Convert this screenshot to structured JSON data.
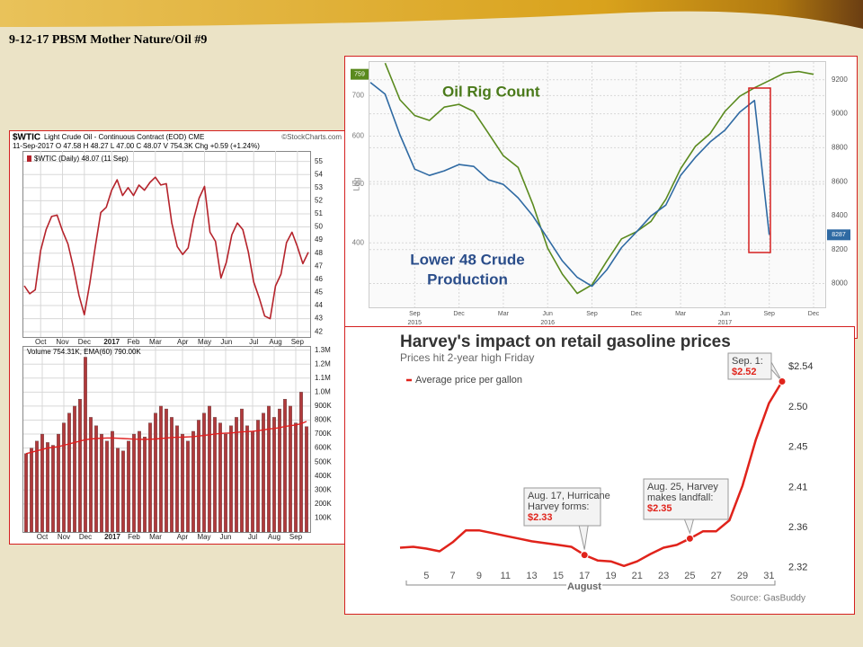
{
  "slide_title": "9-12-17 PBSM Mother Nature/Oil  #9",
  "chart_data": [
    {
      "type": "line",
      "symbol": "$WTIC",
      "title": "Light Crude Oil - Continuous Contract (EOD) CME",
      "credit": "©StockCharts.com",
      "subtitle": "11-Sep-2017  O 47.58  H 48.27  L 47.00  C 48.07  V 754.3K  Chg +0.59 (+1.24%)",
      "categories": [
        null,
        null,
        null,
        "Oct",
        null,
        null,
        null,
        "Nov",
        null,
        null,
        null,
        "Dec",
        null,
        null,
        null,
        null,
        "2017",
        null,
        null,
        null,
        "Feb",
        null,
        null,
        null,
        "Mar",
        null,
        null,
        null,
        null,
        "Apr",
        null,
        null,
        null,
        "May",
        null,
        null,
        null,
        "Jun",
        null,
        null,
        null,
        null,
        "Jul",
        null,
        null,
        null,
        "Aug",
        null,
        null,
        null,
        "Sep",
        null,
        null
      ],
      "series": [
        {
          "name": "$WTIC (Daily) 48.07 (11 Sep)",
          "color": "#b5232b",
          "values": [
            45.5,
            44.9,
            45.2,
            48.2,
            49.8,
            50.8,
            50.9,
            49.7,
            48.7,
            46.9,
            44.8,
            43.3,
            45.7,
            48.5,
            51.1,
            51.5,
            52.8,
            53.6,
            52.4,
            53.0,
            52.4,
            53.2,
            52.8,
            53.4,
            53.8,
            53.2,
            53.3,
            50.3,
            48.5,
            47.9,
            48.4,
            50.6,
            52.2,
            53.1,
            49.6,
            48.9,
            46.1,
            47.3,
            49.4,
            50.3,
            49.8,
            48.1,
            45.8,
            44.6,
            43.2,
            43.0,
            45.5,
            46.4,
            48.8,
            49.6,
            48.5,
            47.2,
            48.07
          ]
        }
      ],
      "ylim": [
        41.6,
        55.8
      ],
      "yticks": [
        42,
        43,
        44,
        45,
        46,
        47,
        48,
        49,
        50,
        51,
        52,
        53,
        54,
        55
      ],
      "grid": true
    },
    {
      "type": "bar",
      "legend": "Volume 754.31K, EMA(60) 790.00K",
      "categories": [
        null,
        null,
        null,
        "Oct",
        null,
        null,
        null,
        "Nov",
        null,
        null,
        null,
        "Dec",
        null,
        null,
        null,
        null,
        "2017",
        null,
        null,
        null,
        "Feb",
        null,
        null,
        null,
        "Mar",
        null,
        null,
        null,
        null,
        "Apr",
        null,
        null,
        null,
        "May",
        null,
        null,
        null,
        "Jun",
        null,
        null,
        null,
        null,
        "Jul",
        null,
        null,
        null,
        "Aug",
        null,
        null,
        null,
        "Sep",
        null,
        null
      ],
      "series": [
        {
          "color": "#b0393b",
          "values": [
            560000,
            600000,
            650000,
            700000,
            640000,
            620000,
            700000,
            780000,
            850000,
            900000,
            950000,
            1250000,
            820000,
            760000,
            700000,
            650000,
            720000,
            600000,
            580000,
            650000,
            700000,
            720000,
            680000,
            780000,
            850000,
            900000,
            880000,
            820000,
            760000,
            700000,
            650000,
            720000,
            800000,
            850000,
            900000,
            820000,
            780000,
            700000,
            760000,
            820000,
            880000,
            760000,
            720000,
            800000,
            850000,
            900000,
            820000,
            880000,
            950000,
            900000,
            780000,
            1000000,
            754000
          ]
        },
        {
          "type": "line",
          "color": "#e02020",
          "values": [
            560000,
            570000,
            580000,
            590000,
            600000,
            605000,
            610000,
            620000,
            630000,
            640000,
            650000,
            660000,
            665000,
            668000,
            670000,
            672000,
            672000,
            670000,
            668000,
            666000,
            664000,
            663000,
            662000,
            663000,
            665000,
            668000,
            672000,
            675000,
            677000,
            678000,
            680000,
            682000,
            686000,
            690000,
            695000,
            700000,
            705000,
            706000,
            708000,
            712000,
            716000,
            718000,
            720000,
            724000,
            730000,
            736000,
            740000,
            746000,
            754000,
            760000,
            765000,
            775000,
            790000
          ]
        }
      ],
      "ylim": [
        0,
        1330000
      ],
      "yticks": [
        {
          "value": 100000,
          "label": "100K"
        },
        {
          "value": 200000,
          "label": "200K"
        },
        {
          "value": 300000,
          "label": "300K"
        },
        {
          "value": 400000,
          "label": "400K"
        },
        {
          "value": 500000,
          "label": "500K"
        },
        {
          "value": 600000,
          "label": "600K"
        },
        {
          "value": 700000,
          "label": "700K"
        },
        {
          "value": 800000,
          "label": "800K"
        },
        {
          "value": 900000,
          "label": "900K"
        },
        {
          "value": 1000000,
          "label": "1.0M"
        },
        {
          "value": 1100000,
          "label": "1.1M"
        },
        {
          "value": 1200000,
          "label": "1.2M"
        },
        {
          "value": 1300000,
          "label": "1.3M"
        }
      ],
      "grid": true
    },
    {
      "type": "line",
      "ylabel": "Log",
      "annotations": [
        "Oil Rig Count",
        "Lower 48 Crude",
        "Production"
      ],
      "categories": [
        null,
        null,
        null,
        "Sep",
        null,
        null,
        "Dec",
        null,
        null,
        "Mar",
        null,
        null,
        "Jun",
        null,
        null,
        "Sep",
        null,
        null,
        "Dec",
        null,
        null,
        "Mar",
        null,
        null,
        "Jun",
        null,
        null,
        "Sep",
        null,
        null,
        "Dec"
      ],
      "category_sublabels": [
        null,
        null,
        null,
        "2015",
        null,
        null,
        null,
        null,
        null,
        null,
        null,
        null,
        "2016",
        null,
        null,
        null,
        null,
        null,
        null,
        null,
        null,
        null,
        null,
        null,
        "2017",
        null,
        null,
        null,
        null,
        null,
        null
      ],
      "series": [
        {
          "color": "#5a8a1e",
          "last_value": 759,
          "values": [
            null,
            792,
            689,
            649,
            637,
            670,
            677,
            659,
            606,
            557,
            533,
            463,
            392,
            355,
            330,
            341,
            373,
            406,
            417,
            434,
            472,
            530,
            577,
            606,
            659,
            698,
            721,
            741,
            762,
            767,
            759
          ]
        },
        {
          "color": "#2f6aa3",
          "axis": "y2",
          "last_value": 8287,
          "values": [
            9184,
            9115,
            8876,
            8674,
            8637,
            8664,
            8701,
            8690,
            8611,
            8584,
            8505,
            8398,
            8266,
            8133,
            8037,
            7984,
            8080,
            8212,
            8303,
            8398,
            8462,
            8637,
            8743,
            8834,
            8903,
            9009,
            9078,
            8287,
            null,
            null,
            null
          ]
        }
      ],
      "ylim": [
        313,
        798
      ],
      "ylog": true,
      "yticks": [
        400,
        500,
        600,
        700
      ],
      "y2lim": [
        7860,
        9310
      ],
      "y2ticks": [
        8000,
        8200,
        8400,
        8600,
        8800,
        9000,
        9200
      ],
      "grid": true
    },
    {
      "type": "line",
      "title": "Harvey's impact on retail gasoline prices",
      "subtitle": "Prices hit 2-year high Friday",
      "xlabel": "August",
      "source": "Source: GasBuddy",
      "categories": [
        null,
        null,
        "5",
        null,
        "7",
        null,
        "9",
        null,
        "11",
        null,
        "13",
        null,
        "15",
        null,
        "17",
        null,
        "19",
        null,
        "21",
        null,
        "23",
        null,
        "25",
        null,
        "27",
        null,
        "29",
        null,
        "31",
        null
      ],
      "series": [
        {
          "name": "Average price per gallon",
          "color": "#e0231b",
          "values": [
            2.342,
            2.343,
            2.341,
            2.338,
            2.348,
            2.361,
            2.361,
            2.358,
            2.355,
            2.352,
            2.349,
            2.347,
            2.345,
            2.343,
            2.334,
            2.328,
            2.327,
            2.322,
            2.327,
            2.335,
            2.342,
            2.345,
            2.352,
            2.36,
            2.36,
            2.372,
            2.41,
            2.46,
            2.5,
            2.524
          ],
          "value_labels": [
            null,
            null,
            null,
            null,
            null,
            null,
            null,
            null,
            null,
            null,
            null,
            null,
            null,
            null,
            "$2.33",
            null,
            null,
            null,
            null,
            null,
            null,
            null,
            "$2.35",
            null,
            null,
            null,
            null,
            null,
            null,
            "$2.52"
          ]
        }
      ],
      "annotations": [
        [
          "Aug. 17, Hurricane",
          "Harvey forms:"
        ],
        [
          "Aug. 25, Harvey",
          "makes landfall:"
        ],
        [
          "Sep. 1:"
        ]
      ],
      "ylim": [
        2.31,
        2.555
      ],
      "yticks": [
        2.32,
        {
          "value": 2.364,
          "label": "2.36"
        },
        {
          "value": 2.408,
          "label": "2.41"
        },
        {
          "value": 2.452,
          "label": "2.45"
        },
        {
          "value": 2.496,
          "label": "2.50"
        },
        {
          "value": 2.54,
          "label": "$2.54"
        }
      ],
      "grid": false
    }
  ]
}
